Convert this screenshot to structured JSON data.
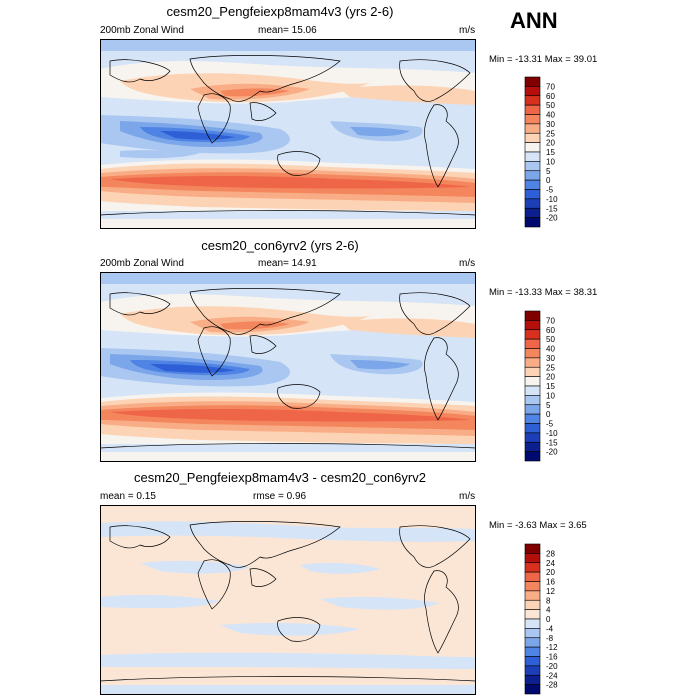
{
  "season": "ANN",
  "panels": [
    {
      "title": "cesm20_Pengfeiexp8mam4v3 (yrs 2-6)",
      "left_label": "200mb Zonal Wind",
      "center_label": "mean=  15.06",
      "units": "m/s",
      "minmax": "Min = -13.31 Max =  39.01",
      "colorbar_labels": [
        "70",
        "60",
        "50",
        "40",
        "30",
        "25",
        "20",
        "15",
        "10",
        "5",
        "0",
        "-5",
        "-10",
        "-15",
        "-20"
      ]
    },
    {
      "title": "cesm20_con6yrv2 (yrs 2-6)",
      "left_label": "200mb Zonal Wind",
      "center_label": "mean=  14.91",
      "units": "m/s",
      "minmax": "Min = -13.33 Max =  38.31",
      "colorbar_labels": [
        "70",
        "60",
        "50",
        "40",
        "30",
        "25",
        "20",
        "15",
        "10",
        "5",
        "0",
        "-5",
        "-10",
        "-15",
        "-20"
      ]
    },
    {
      "title": "cesm20_Pengfeiexp8mam4v3 - cesm20_con6yrv2",
      "left_label": "mean =   0.15",
      "center_label": "rmse =   0.96",
      "units": "m/s",
      "minmax": "Min =  -3.63 Max =   3.65",
      "colorbar_labels": [
        "28",
        "24",
        "20",
        "16",
        "12",
        "8",
        "4",
        "0",
        "-4",
        "-8",
        "-12",
        "-16",
        "-20",
        "-24",
        "-28"
      ]
    }
  ],
  "colors": {
    "abs_scale": [
      "#800000",
      "#b40f0a",
      "#d7301f",
      "#ef6548",
      "#f4865d",
      "#f9ad86",
      "#fcd3b4",
      "#f7f4ef",
      "#d6e4f7",
      "#a9c7f0",
      "#7ba6ea",
      "#4f83e4",
      "#2f5fd6",
      "#1c3fb8",
      "#0c1f8f",
      "#000a6e"
    ],
    "diff_scale": [
      "#800000",
      "#b40f0a",
      "#d7301f",
      "#ef6548",
      "#f4865d",
      "#f9ad86",
      "#fcd3b4",
      "#fbe6d6",
      "#d6e4f7",
      "#a9c7f0",
      "#7ba6ea",
      "#4f83e4",
      "#2f5fd6",
      "#1c3fb8",
      "#0c1f8f",
      "#000a6e"
    ]
  },
  "chart_data": [
    {
      "type": "heatmap",
      "title": "cesm20_Pengfeiexp8mam4v3 (yrs 2-6)",
      "variable": "200mb Zonal Wind",
      "units": "m/s",
      "mean": 15.06,
      "min": -13.31,
      "max": 39.01,
      "contour_levels": [
        -20,
        -15,
        -10,
        -5,
        0,
        5,
        10,
        15,
        20,
        25,
        30,
        40,
        50,
        60,
        70
      ]
    },
    {
      "type": "heatmap",
      "title": "cesm20_con6yrv2 (yrs 2-6)",
      "variable": "200mb Zonal Wind",
      "units": "m/s",
      "mean": 14.91,
      "min": -13.33,
      "max": 38.31,
      "contour_levels": [
        -20,
        -15,
        -10,
        -5,
        0,
        5,
        10,
        15,
        20,
        25,
        30,
        40,
        50,
        60,
        70
      ]
    },
    {
      "type": "heatmap",
      "title": "cesm20_Pengfeiexp8mam4v3 - cesm20_con6yrv2",
      "units": "m/s",
      "mean": 0.15,
      "rmse": 0.96,
      "min": -3.63,
      "max": 3.65,
      "contour_levels": [
        -28,
        -24,
        -20,
        -16,
        -12,
        -8,
        -4,
        0,
        4,
        8,
        12,
        16,
        20,
        24,
        28
      ]
    }
  ]
}
